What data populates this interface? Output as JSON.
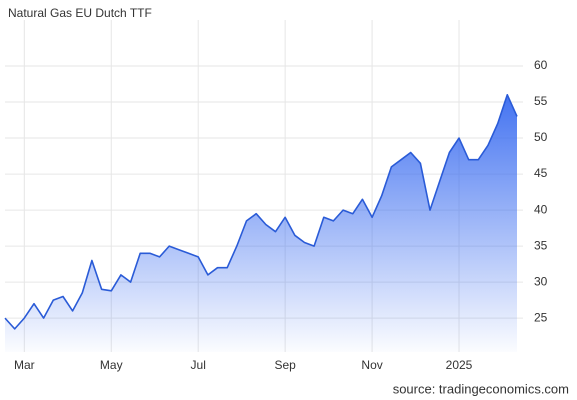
{
  "chart_data": {
    "type": "area",
    "title": "Natural Gas EU Dutch TTF",
    "source": "source: tradingeconomics.com",
    "categories": [
      null,
      null,
      "Mar",
      null,
      null,
      null,
      null,
      null,
      null,
      null,
      null,
      "May",
      null,
      null,
      null,
      null,
      null,
      null,
      null,
      null,
      "Jul",
      null,
      null,
      null,
      null,
      null,
      null,
      null,
      null,
      "Sep",
      null,
      null,
      null,
      null,
      null,
      null,
      null,
      null,
      "Nov",
      null,
      null,
      null,
      null,
      null,
      null,
      null,
      null,
      "2025",
      null,
      null,
      null,
      null,
      null,
      null
    ],
    "series": [
      {
        "name": "Natural Gas EU Dutch TTF",
        "color": "#2a5bd7",
        "values": [
          25,
          23.5,
          25,
          27,
          25,
          27.5,
          28,
          26,
          28.5,
          33,
          29,
          28.8,
          31,
          30,
          34,
          34,
          33.5,
          35,
          34.5,
          34,
          33.5,
          31,
          32,
          32,
          35,
          38.5,
          39.5,
          38,
          37,
          39,
          36.5,
          35.5,
          35,
          39,
          38.5,
          40,
          39.5,
          41.5,
          39,
          42,
          46,
          47,
          48,
          46.5,
          40,
          44,
          48,
          50,
          47,
          47,
          49,
          52,
          56,
          53
        ]
      }
    ],
    "ylim": [
      20.3,
      65
    ],
    "yticks": [
      25,
      30,
      35,
      40,
      45,
      50,
      55,
      60
    ],
    "grid": true
  }
}
